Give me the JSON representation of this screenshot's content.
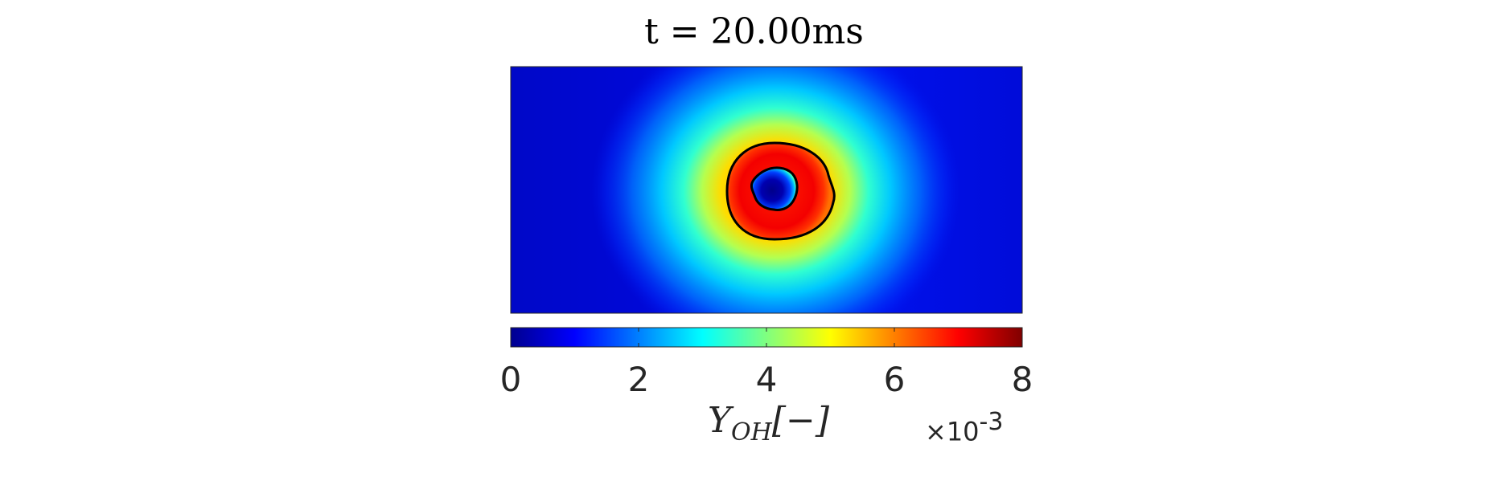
{
  "chart_data": {
    "type": "heatmap",
    "title": "t = 20.00ms",
    "colormap": "jet",
    "colorbar": {
      "orientation": "horizontal",
      "placement": "bottom",
      "range": [
        0,
        8
      ],
      "ticks": [
        0,
        2,
        4,
        6,
        8
      ],
      "tick_labels": [
        "0",
        "2",
        "4",
        "6",
        "8"
      ],
      "label_symbol": "Y",
      "label_subscript": "OH",
      "label_unit": "[−]",
      "multiplier_prefix": "×10",
      "multiplier_exponent": "-3"
    },
    "field": {
      "description": "OH mass fraction; annular flame ring around a low-value kernel",
      "background_value": 1.0,
      "peak_value": 7.2,
      "kernel_value": 0.3
    },
    "contours": {
      "count": 2,
      "color": "#000000"
    },
    "axes_visible": false
  }
}
